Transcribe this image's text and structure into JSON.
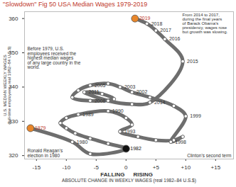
{
  "chart_data": {
    "type": "connected_scatter",
    "title": "\"Slowdown\" Fig 50 USA Median Wages 1979-2019",
    "x_label": "ABSOLUTE CHANGE IN WEEKLY WAGES (real 1982–84 U.S.$)",
    "y_label": "U.S. MEDIAN WEEKLY WAGES\n(full-time employees, real 1982–84 U.S.$)",
    "annotations": [
      "From 2014 to 2017,\nduring the final years\nof Barack Obama's\npresidency, wages rose\nbut growth was slowing.",
      "Before 1979, U.S.\nemployees received the\nhighest median wages\nof any large country in the\nworld.",
      "Clinton's second term",
      "Ronald Reagan's\nelection in 1980",
      "FALLING",
      "RISING"
    ],
    "x": [
      -16,
      -9,
      -6,
      0,
      -3,
      -6,
      -8.5,
      -10,
      -11,
      -10,
      -8,
      -3,
      0,
      1,
      -1,
      2,
      5,
      8,
      9.5,
      7.5,
      10,
      8,
      4,
      1,
      -1,
      -3,
      -6,
      -8,
      -9,
      -6,
      -2,
      -4,
      -7,
      -3,
      1,
      4,
      9.5,
      6.5,
      5,
      3.5,
      1.5
    ],
    "values": [
      328,
      324,
      320.5,
      322,
      323.5,
      325,
      326.5,
      328,
      329.5,
      331,
      332,
      333,
      331,
      329,
      327,
      325.5,
      324.5,
      324.5,
      325.5,
      324,
      331.5,
      334.5,
      337,
      338.5,
      340,
      341,
      340.5,
      339,
      337,
      336,
      336.5,
      338,
      338.5,
      336,
      335,
      335.5,
      347.5,
      354,
      356.5,
      358.5,
      360
    ],
    "labels": [
      "1979",
      "1980",
      null,
      "1982",
      null,
      null,
      null,
      null,
      null,
      null,
      "1989",
      "1990",
      null,
      null,
      "1993",
      null,
      null,
      null,
      null,
      "1998",
      "1999",
      null,
      null,
      "2002",
      "2003",
      null,
      "2005",
      null,
      null,
      "2008",
      null,
      null,
      "2011",
      null,
      null,
      "2014",
      "2015",
      "2016",
      "2017",
      "2018",
      "2019"
    ],
    "color": "#6e6e6e",
    "colors": [
      "#e8862a",
      "#ffffff",
      "#ffffff",
      "#111111",
      "#ffffff",
      "#ffffff",
      "#ffffff",
      "#ffffff",
      "#ffffff",
      "#ffffff",
      "#ffffff",
      "#ffffff",
      "#ffffff",
      "#ffffff",
      "#ffffff",
      "#ffffff",
      "#ffffff",
      "#ffffff",
      "#ffffff",
      "#ffffff",
      "#ffffff",
      "#ffffff",
      "#ffffff",
      "#ffffff",
      "#ffffff",
      "#ffffff",
      "#ffffff",
      "#ffffff",
      "#ffffff",
      "#ffffff",
      "#ffffff",
      "#ffffff",
      "#ffffff",
      "#ffffff",
      "#ffffff",
      "#ffffff",
      "#ffffff",
      "#ffffff",
      "#ffffff",
      "#ffffff",
      "#e8862a"
    ],
    "xlim": [
      -17,
      18
    ],
    "ylim": [
      319,
      362
    ],
    "xticks": [
      -15,
      -10,
      -5,
      0,
      {
        "value": 5,
        "label": "+5"
      },
      {
        "value": 10,
        "label": "+10"
      },
      {
        "value": 15,
        "label": "+15"
      }
    ],
    "yticks": [
      320,
      330,
      340,
      350,
      360
    ],
    "grid": false
  }
}
